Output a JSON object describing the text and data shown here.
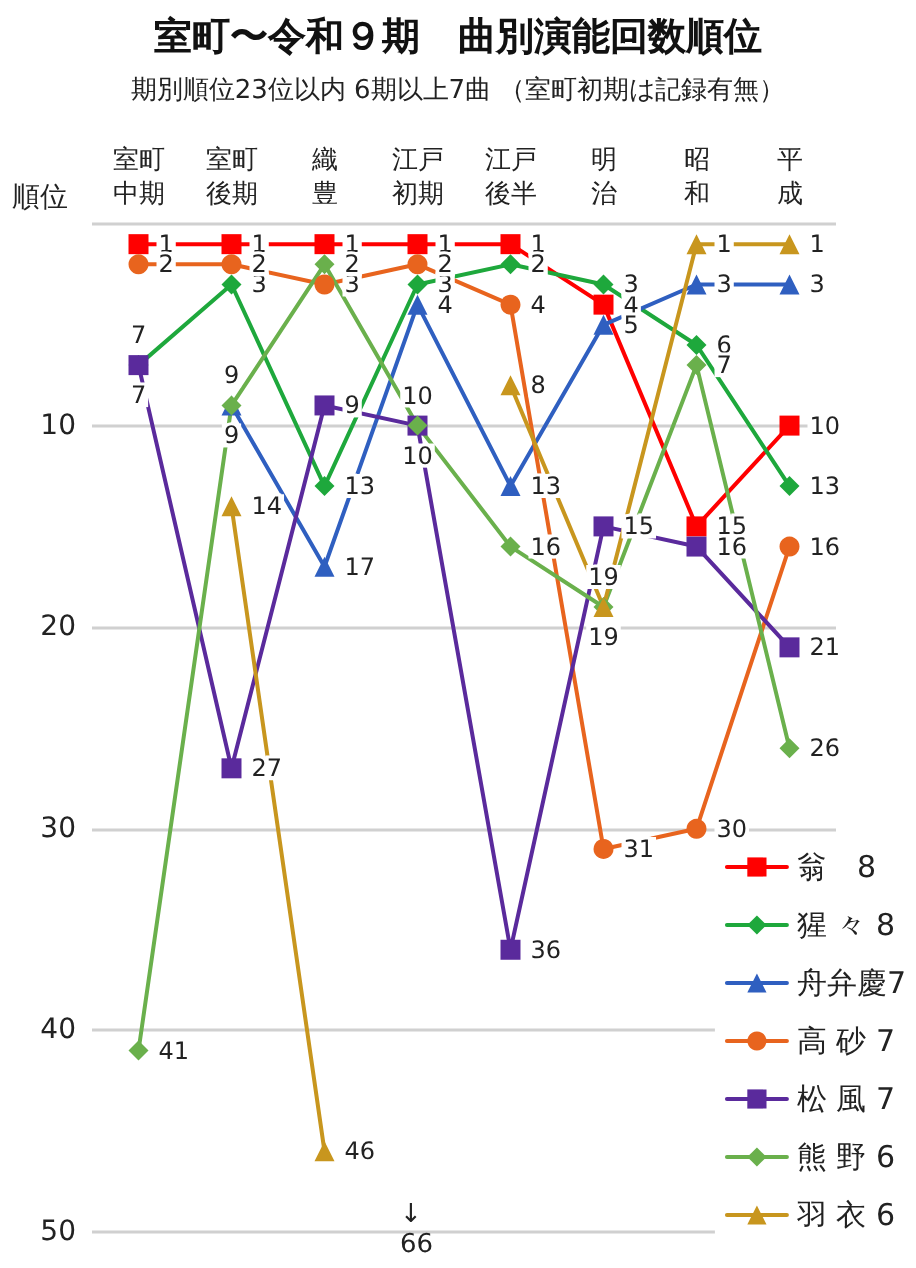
{
  "chart_data": {
    "type": "line",
    "title": "室町〜令和９期　曲別演能回数順位",
    "subtitle": "期別順位23位以内 6期以上7曲 （室町初期は記録有無）",
    "ylabel": "順位",
    "categories": [
      "室町中期",
      "室町後期",
      "織豊",
      "江戸初期",
      "江戸後半",
      "明治",
      "昭和",
      "平成"
    ],
    "series": [
      {
        "name": "翁　8",
        "color": "#ff0000",
        "marker": "square",
        "values": [
          1,
          1,
          1,
          1,
          1,
          4,
          15,
          10
        ]
      },
      {
        "name": "猩 々 8",
        "color": "#1ea83c",
        "marker": "diamond",
        "values": [
          7,
          3,
          13,
          3,
          2,
          3,
          6,
          13
        ]
      },
      {
        "name": "舟弁慶7",
        "color": "#2f5fc0",
        "marker": "triangle",
        "values": [
          null,
          9,
          17,
          4,
          13,
          5,
          3,
          3
        ]
      },
      {
        "name": "高 砂 7",
        "color": "#e8641e",
        "marker": "circle",
        "values": [
          2,
          2,
          3,
          2,
          4,
          31,
          30,
          16
        ]
      },
      {
        "name": "松 風 7",
        "color": "#5a2a9c",
        "marker": "square",
        "values": [
          7,
          27,
          9,
          10,
          36,
          15,
          16,
          21
        ]
      },
      {
        "name": "熊 野 6",
        "color": "#6ab04c",
        "marker": "diamond",
        "values": [
          41,
          9,
          2,
          10,
          16,
          19,
          7,
          26
        ]
      },
      {
        "name": "羽 衣 6",
        "color": "#c8961e",
        "marker": "triangle",
        "values": [
          null,
          14,
          46,
          null,
          8,
          19,
          1,
          1
        ]
      }
    ],
    "ylim": [
      50,
      0
    ],
    "yticks": [
      {
        "value": 0,
        "label": null
      },
      10,
      20,
      30,
      40,
      50
    ],
    "annotations": [
      "↓\n66"
    ],
    "data_labels": true,
    "grid": "y",
    "legend": "bottom right"
  }
}
